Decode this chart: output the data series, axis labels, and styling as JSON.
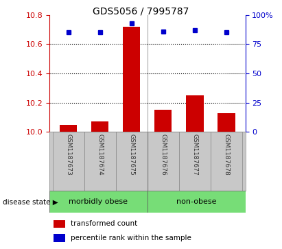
{
  "title": "GDS5056 / 7995787",
  "samples": [
    "GSM1187673",
    "GSM1187674",
    "GSM1187675",
    "GSM1187676",
    "GSM1187677",
    "GSM1187678"
  ],
  "bar_values": [
    10.05,
    10.07,
    10.72,
    10.15,
    10.25,
    10.13
  ],
  "percentile_values": [
    85,
    85,
    93,
    86,
    87,
    85
  ],
  "bar_color": "#cc0000",
  "dot_color": "#0000cc",
  "ylim_left": [
    10.0,
    10.8
  ],
  "ylim_right": [
    0,
    100
  ],
  "yticks_left": [
    10.0,
    10.2,
    10.4,
    10.6,
    10.8
  ],
  "yticks_right": [
    0,
    25,
    50,
    75,
    100
  ],
  "bar_width": 0.55,
  "bg_color": "#c8c8c8",
  "plot_bg_color": "#ffffff",
  "grid_color": "#000000",
  "tick_color_left": "#cc0000",
  "tick_color_right": "#0000cc",
  "group1_label": "morbidly obese",
  "group2_label": "non-obese",
  "group_color": "#77dd77",
  "legend_item1": "transformed count",
  "legend_item2": "percentile rank within the sample",
  "disease_state_label": "disease state"
}
